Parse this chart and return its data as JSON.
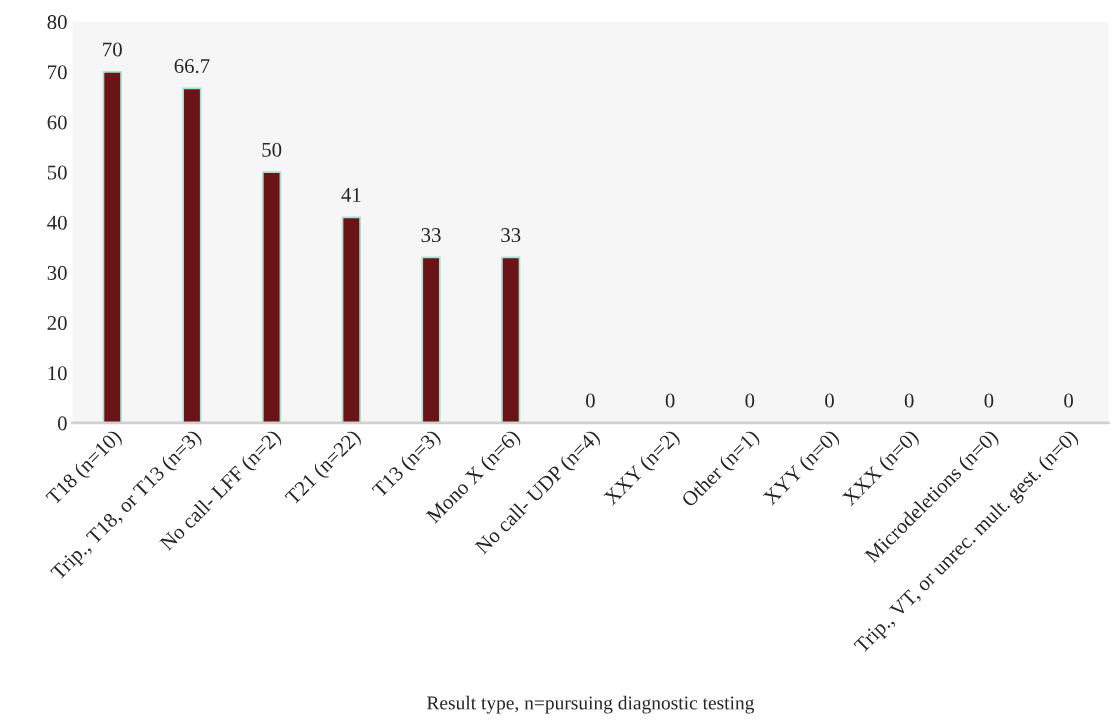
{
  "chart_data": {
    "type": "bar",
    "xlabel": "Result type, n=pursuing diagnostic testing",
    "categories": [
      "T18 (n=10)",
      "Trip., T18, or T13 (n=3)",
      "No call- LFF (n=2)",
      "T21 (n=22)",
      "T13 (n=3)",
      "Mono X (n=6)",
      "No call- UDP (n=4)",
      "XXY (n=2)",
      "Other (n=1)",
      "XYY (n=0)",
      "XXX (n=0)",
      "Microdeletions (n=0)",
      "Trip., VT, or unrec. mult. gest. (n=0)"
    ],
    "values": [
      70,
      66.7,
      50,
      41,
      33,
      33,
      0,
      0,
      0,
      0,
      0,
      0,
      0
    ],
    "color": "#6b1418",
    "data_labels": true,
    "ylim": [
      0,
      80
    ],
    "yticks": [
      0,
      10,
      20,
      30,
      40,
      50,
      60,
      70,
      80
    ],
    "grid": false
  }
}
